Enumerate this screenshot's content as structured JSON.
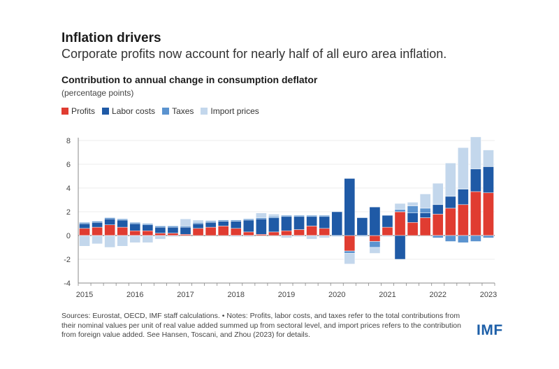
{
  "header": {
    "title": "Inflation drivers",
    "subtitle": "Corporate profits now account for nearly half of all euro area inflation."
  },
  "chart_title": "Contribution to annual change in consumption deflator",
  "unit_label": "(percentage points)",
  "footer": {
    "notes": "Sources: Eurostat, OECD, IMF staff calculations. • Notes: Profits, labor costs, and taxes refer to the total contributions from their nominal values per unit of real value added summed up from sectoral level, and import prices refers to the contribution from foreign value added. See Hansen, Toscani, and Zhou (2023) for details.",
    "logo": "IMF"
  },
  "colors": {
    "profits": "#e03c31",
    "labor": "#1f5aa6",
    "taxes": "#5b93cf",
    "import": "#c3d7ec",
    "axis": "#888888",
    "grid": "#e6e6e6"
  },
  "chart_data": {
    "type": "bar",
    "stacked": true,
    "ylim": [
      -4,
      8
    ],
    "yticks": [
      "-4",
      "-2",
      "0",
      "2",
      "4",
      "6",
      "8"
    ],
    "xtick_labels": [
      "2015",
      "2016",
      "2017",
      "2018",
      "2019",
      "2020",
      "2021",
      "2022",
      "2023"
    ],
    "periods": [
      "2015Q1",
      "2015Q2",
      "2015Q3",
      "2015Q4",
      "2016Q1",
      "2016Q2",
      "2016Q3",
      "2016Q4",
      "2017Q1",
      "2017Q2",
      "2017Q3",
      "2017Q4",
      "2018Q1",
      "2018Q2",
      "2018Q3",
      "2018Q4",
      "2019Q1",
      "2019Q2",
      "2019Q3",
      "2019Q4",
      "2020Q1",
      "2020Q2",
      "2020Q3",
      "2020Q4",
      "2021Q1",
      "2021Q2",
      "2021Q3",
      "2021Q4",
      "2022Q1",
      "2022Q2",
      "2022Q3",
      "2022Q4",
      "2023Q1"
    ],
    "legend": [
      "Profits",
      "Labor costs",
      "Taxes",
      "Import prices"
    ],
    "series": [
      {
        "name": "Profits",
        "key": "profits",
        "values": [
          0.6,
          0.7,
          0.9,
          0.7,
          0.4,
          0.4,
          0.2,
          0.2,
          0.1,
          0.6,
          0.7,
          0.8,
          0.6,
          0.3,
          0.1,
          0.3,
          0.4,
          0.5,
          0.8,
          0.6,
          0.0,
          -1.3,
          0.0,
          -0.5,
          0.7,
          2.0,
          1.1,
          1.5,
          1.8,
          2.3,
          2.6,
          3.7,
          3.6
        ]
      },
      {
        "name": "Labor costs",
        "key": "labor",
        "values": [
          0.4,
          0.4,
          0.5,
          0.6,
          0.6,
          0.5,
          0.5,
          0.5,
          0.6,
          0.4,
          0.4,
          0.4,
          0.6,
          1.0,
          1.3,
          1.2,
          1.2,
          1.1,
          0.8,
          1.0,
          2.0,
          4.8,
          1.5,
          2.4,
          1.0,
          -2.0,
          0.8,
          0.4,
          0.8,
          1.0,
          1.3,
          1.9,
          2.2
        ]
      },
      {
        "name": "Taxes",
        "key": "taxes",
        "values": [
          0.1,
          0.1,
          0.1,
          0.1,
          0.1,
          0.1,
          0.1,
          0.1,
          0.1,
          0.1,
          0.1,
          0.1,
          0.1,
          0.1,
          0.1,
          0.1,
          0.1,
          0.1,
          0.1,
          0.1,
          0.0,
          -0.2,
          0.0,
          -0.5,
          0.0,
          0.2,
          0.6,
          0.4,
          -0.2,
          -0.5,
          -0.6,
          -0.5,
          -0.2
        ]
      },
      {
        "name": "Import prices",
        "key": "import",
        "values": [
          -0.9,
          -0.7,
          -1.0,
          -0.9,
          -0.6,
          -0.6,
          -0.3,
          -0.1,
          0.6,
          0.2,
          0.1,
          0.0,
          -0.1,
          -0.1,
          0.4,
          0.2,
          -0.2,
          -0.1,
          -0.3,
          -0.2,
          -0.1,
          -0.9,
          -0.1,
          -0.5,
          -0.1,
          0.5,
          0.3,
          1.2,
          1.8,
          2.8,
          3.5,
          2.7,
          1.4
        ]
      }
    ]
  }
}
